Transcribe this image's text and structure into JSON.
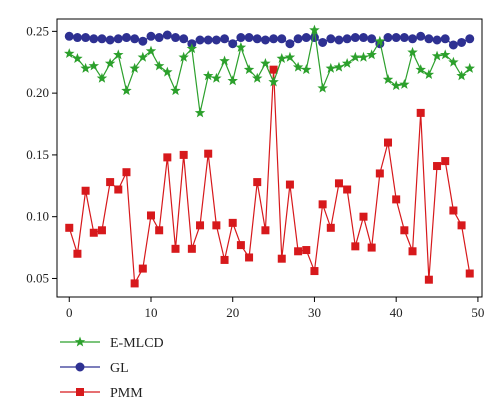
{
  "chart_data": {
    "type": "line",
    "x": [
      0,
      1,
      2,
      3,
      4,
      5,
      6,
      7,
      8,
      9,
      10,
      11,
      12,
      13,
      14,
      15,
      16,
      17,
      18,
      19,
      20,
      21,
      22,
      23,
      24,
      25,
      26,
      27,
      28,
      29,
      30,
      31,
      32,
      33,
      34,
      35,
      36,
      37,
      38,
      39,
      40,
      41,
      42,
      43,
      44,
      45,
      46,
      47,
      48,
      49
    ],
    "xlim": [
      -1.5,
      50.5
    ],
    "ylim": [
      0.035,
      0.26
    ],
    "xticks": [
      0,
      10,
      20,
      30,
      40,
      50
    ],
    "yticks": [
      0.05,
      0.1,
      0.15,
      0.2,
      0.25
    ],
    "xtick_labels": [
      "0",
      "10",
      "20",
      "30",
      "40",
      "50"
    ],
    "ytick_labels": [
      "0.05",
      "0.10",
      "0.15",
      "0.20",
      "0.25"
    ],
    "grid": false,
    "legend_position": "bottom-left, below plot",
    "series": [
      {
        "name": "E-MLCD",
        "color": "#2ca02c",
        "marker": "star",
        "values": [
          0.232,
          0.228,
          0.22,
          0.222,
          0.212,
          0.224,
          0.231,
          0.202,
          0.22,
          0.229,
          0.234,
          0.222,
          0.217,
          0.202,
          0.229,
          0.236,
          0.184,
          0.214,
          0.212,
          0.226,
          0.21,
          0.237,
          0.219,
          0.212,
          0.224,
          0.209,
          0.228,
          0.229,
          0.221,
          0.219,
          0.251,
          0.204,
          0.22,
          0.221,
          0.224,
          0.229,
          0.229,
          0.231,
          0.242,
          0.211,
          0.206,
          0.207,
          0.233,
          0.219,
          0.215,
          0.23,
          0.231,
          0.225,
          0.214,
          0.22
        ]
      },
      {
        "name": "GL",
        "color": "#2e3192",
        "marker": "circle",
        "values": [
          0.246,
          0.245,
          0.245,
          0.244,
          0.244,
          0.243,
          0.244,
          0.245,
          0.244,
          0.242,
          0.246,
          0.245,
          0.247,
          0.245,
          0.244,
          0.24,
          0.243,
          0.243,
          0.243,
          0.244,
          0.24,
          0.245,
          0.245,
          0.244,
          0.243,
          0.244,
          0.244,
          0.24,
          0.244,
          0.245,
          0.245,
          0.241,
          0.244,
          0.243,
          0.244,
          0.245,
          0.245,
          0.244,
          0.24,
          0.245,
          0.245,
          0.245,
          0.244,
          0.246,
          0.244,
          0.243,
          0.244,
          0.239,
          0.241,
          0.244
        ]
      },
      {
        "name": "PMM",
        "color": "#d7191c",
        "marker": "square",
        "values": [
          0.091,
          0.07,
          0.121,
          0.087,
          0.089,
          0.128,
          0.122,
          0.136,
          0.046,
          0.058,
          0.101,
          0.089,
          0.148,
          0.074,
          0.15,
          0.074,
          0.093,
          0.151,
          0.093,
          0.065,
          0.095,
          0.077,
          0.067,
          0.128,
          0.089,
          0.219,
          0.066,
          0.126,
          0.072,
          0.073,
          0.056,
          0.11,
          0.091,
          0.127,
          0.122,
          0.076,
          0.1,
          0.075,
          0.135,
          0.16,
          0.114,
          0.089,
          0.072,
          0.184,
          0.049,
          0.141,
          0.145,
          0.105,
          0.093,
          0.054
        ]
      }
    ]
  }
}
